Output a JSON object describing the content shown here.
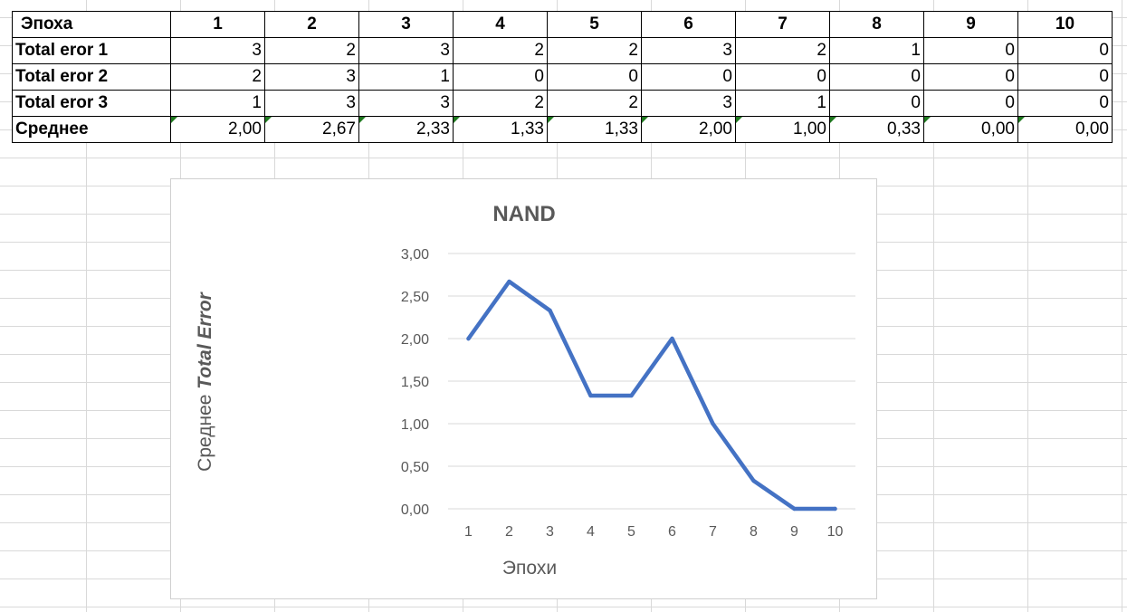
{
  "table": {
    "header_label": "Эпоха",
    "columns": [
      "1",
      "2",
      "3",
      "4",
      "5",
      "6",
      "7",
      "8",
      "9",
      "10"
    ],
    "rows": [
      {
        "label": "Total eror 1",
        "values": [
          "3",
          "2",
          "3",
          "2",
          "2",
          "3",
          "2",
          "1",
          "0",
          "0"
        ]
      },
      {
        "label": "Total eror 2",
        "values": [
          "2",
          "3",
          "1",
          "0",
          "0",
          "0",
          "0",
          "0",
          "0",
          "0"
        ]
      },
      {
        "label": "Total eror 3",
        "values": [
          "1",
          "3",
          "3",
          "2",
          "2",
          "3",
          "1",
          "0",
          "0",
          "0"
        ]
      },
      {
        "label": "Среднее",
        "values": [
          "2,00",
          "2,67",
          "2,33",
          "1,33",
          "1,33",
          "2,00",
          "1,00",
          "0,33",
          "0,00",
          "0,00"
        ]
      }
    ]
  },
  "chart_data": {
    "type": "line",
    "title": "NAND",
    "xlabel": "Эпохи",
    "ylabel_prefix": "Среднее ",
    "ylabel_emphasis": "Total Error",
    "categories": [
      "1",
      "2",
      "3",
      "4",
      "5",
      "6",
      "7",
      "8",
      "9",
      "10"
    ],
    "series": [
      {
        "name": "Среднее",
        "values": [
          2.0,
          2.67,
          2.33,
          1.33,
          1.33,
          2.0,
          1.0,
          0.33,
          0.0,
          0.0
        ]
      }
    ],
    "ylim": [
      0,
      3
    ],
    "yticks": [
      0,
      0.5,
      1,
      1.5,
      2,
      2.5,
      3
    ],
    "ytick_labels": [
      "0,00",
      "0,50",
      "1,00",
      "1,50",
      "2,00",
      "2,50",
      "3,00"
    ],
    "grid": true,
    "legend": "none",
    "line_color": "#4472c4",
    "grid_color": "#d9d9d9"
  }
}
